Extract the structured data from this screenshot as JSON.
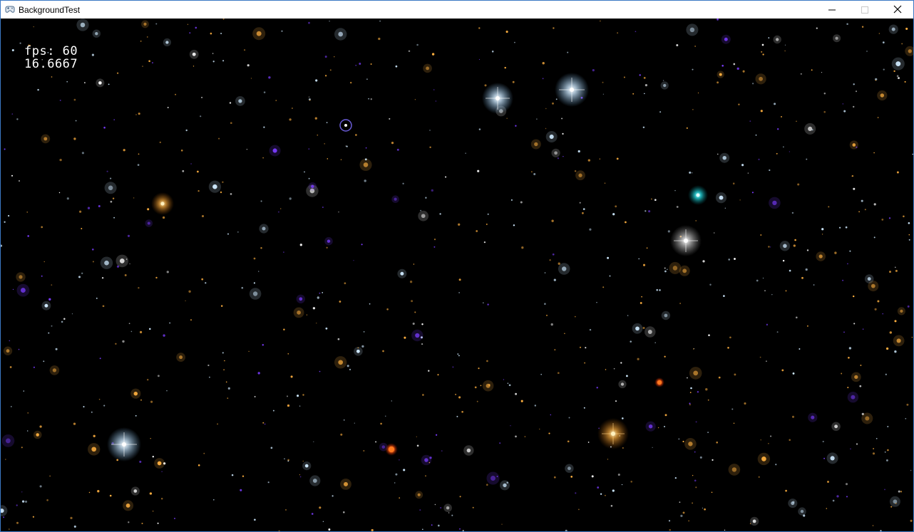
{
  "window": {
    "title": "BackgroundTest",
    "app_icon": "game-controller-icon",
    "controls": [
      "minimize-icon",
      "maximize-icon",
      "close-icon"
    ]
  },
  "hud": {
    "fps_label": "fps: 60",
    "frame_time": "16.6667"
  },
  "scene": {
    "background_color": "#000000",
    "star_colors": {
      "blue_white": "#cfeaff",
      "warm": "#ffb040",
      "white": "#ffffff",
      "cyan": "#29e0e6",
      "purple": "#7a3cff",
      "red_orange": "#ff5a10"
    }
  }
}
